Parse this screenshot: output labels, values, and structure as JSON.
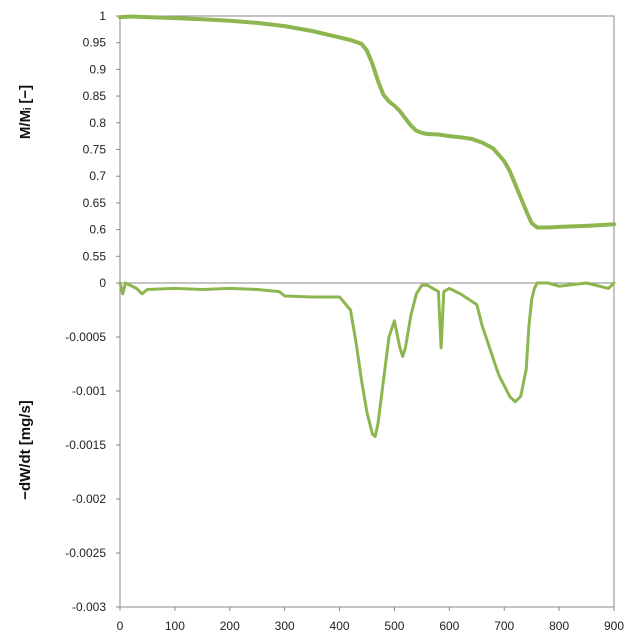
{
  "chart_data": [
    {
      "type": "line",
      "panel": "top",
      "ylabel": "M/Mᵢ [−]",
      "xlim": [
        0,
        900
      ],
      "ylim": [
        0.5,
        1.0
      ],
      "yticks": [
        "1",
        "0.95",
        "0.9",
        "0.85",
        "0.8",
        "0.75",
        "0.7",
        "0.65",
        "0.6",
        "0.55"
      ],
      "ytick_values": [
        1,
        0.95,
        0.9,
        0.85,
        0.8,
        0.75,
        0.7,
        0.65,
        0.6,
        0.55
      ],
      "grid": false,
      "line_color": "#8db650",
      "series": [
        {
          "x": [
            0,
            20,
            50,
            100,
            150,
            200,
            250,
            300,
            350,
            400,
            420,
            440,
            450,
            460,
            470,
            480,
            490,
            500,
            510,
            520,
            530,
            540,
            550,
            560,
            580,
            600,
            620,
            640,
            660,
            680,
            700,
            710,
            720,
            730,
            740,
            750,
            760,
            780,
            800,
            850,
            900
          ],
          "y": [
            0.998,
            0.999,
            0.998,
            0.996,
            0.994,
            0.991,
            0.987,
            0.981,
            0.972,
            0.96,
            0.955,
            0.948,
            0.935,
            0.91,
            0.878,
            0.852,
            0.84,
            0.832,
            0.822,
            0.808,
            0.795,
            0.785,
            0.781,
            0.779,
            0.778,
            0.775,
            0.773,
            0.77,
            0.763,
            0.752,
            0.728,
            0.71,
            0.685,
            0.66,
            0.635,
            0.612,
            0.604,
            0.604,
            0.605,
            0.607,
            0.61
          ]
        }
      ]
    },
    {
      "type": "line",
      "panel": "bottom",
      "ylabel": "−dW/dt [mg/s]",
      "xlim": [
        0,
        900
      ],
      "ylim": [
        -0.003,
        0
      ],
      "yticks": [
        "0",
        "-0.0005",
        "-0.001",
        "-0.0015",
        "-0.002",
        "-0.0025",
        "-0.003"
      ],
      "ytick_values": [
        0,
        -0.0005,
        -0.001,
        -0.0015,
        -0.002,
        -0.0025,
        -0.003
      ],
      "xticks": [
        "0",
        "100",
        "200",
        "300",
        "400",
        "500",
        "600",
        "700",
        "800",
        "900"
      ],
      "xtick_values": [
        0,
        100,
        200,
        300,
        400,
        500,
        600,
        700,
        800,
        900
      ],
      "grid": false,
      "line_color": "#8db650",
      "series": [
        {
          "x": [
            0,
            5,
            10,
            30,
            40,
            50,
            100,
            150,
            200,
            250,
            290,
            300,
            350,
            400,
            420,
            430,
            440,
            450,
            460,
            465,
            470,
            480,
            490,
            500,
            510,
            515,
            520,
            530,
            540,
            550,
            560,
            570,
            580,
            585,
            590,
            600,
            620,
            650,
            660,
            670,
            680,
            690,
            700,
            710,
            720,
            730,
            740,
            745,
            750,
            755,
            760,
            780,
            800,
            850,
            890,
            900
          ],
          "y": [
            0,
            -0.0001,
            0,
            -5e-05,
            -0.0001,
            -6e-05,
            -5e-05,
            -6e-05,
            -5e-05,
            -6e-05,
            -8e-05,
            -0.00012,
            -0.00013,
            -0.00013,
            -0.00025,
            -0.00055,
            -0.0009,
            -0.0012,
            -0.0014,
            -0.00142,
            -0.0013,
            -0.0009,
            -0.0005,
            -0.00035,
            -0.0006,
            -0.00068,
            -0.0006,
            -0.0003,
            -0.0001,
            -2e-05,
            -2e-05,
            -5e-05,
            -8e-05,
            -0.0006,
            -8e-05,
            -5e-05,
            -0.0001,
            -0.0002,
            -0.0004,
            -0.00055,
            -0.0007,
            -0.00085,
            -0.00095,
            -0.00105,
            -0.0011,
            -0.00105,
            -0.0008,
            -0.0004,
            -0.00015,
            -5e-05,
            0,
            0,
            -3e-05,
            0,
            -5e-05,
            0
          ]
        }
      ]
    }
  ]
}
